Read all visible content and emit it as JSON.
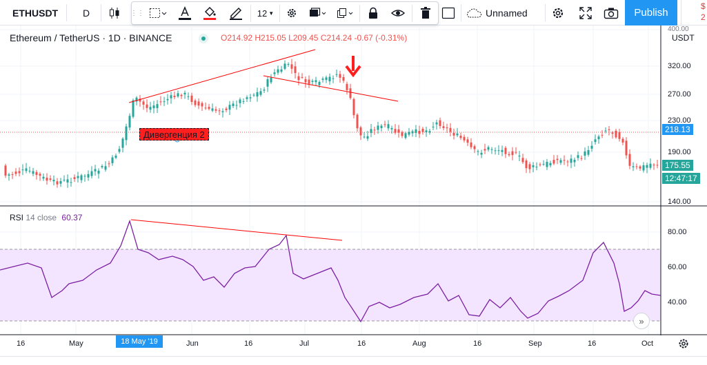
{
  "toolbar": {
    "symbol": "ETHUSDT",
    "interval": "D",
    "font_size": "12",
    "layout_name": "Unnamed",
    "publish_label": "Publish",
    "edge_dollar": "$",
    "edge_digit": "2"
  },
  "chart": {
    "legend": {
      "title": "Ethereum / TetherUS · 1D · BINANCE",
      "ohlc": "O214.92 H215.05 L209.45 C214.24 -0.67 (-0.31%)"
    },
    "rsi_legend": {
      "name": "RSI",
      "params": "14 close",
      "value": "60.37"
    },
    "annotation": "Дивергенция 2",
    "price_axis": {
      "currency": "USDT",
      "ticks": [
        "400.00",
        "320.00",
        "270.00",
        "230.00",
        "190.00",
        "140.00"
      ],
      "marker_price": "218.13",
      "last_price": "175.55",
      "countdown": "12:47:17"
    },
    "rsi_axis": {
      "ticks": [
        "80.00",
        "60.00",
        "40.00"
      ]
    },
    "time_axis": {
      "ticks": [
        "16",
        "May",
        "Jun",
        "16",
        "Jul",
        "16",
        "Aug",
        "16",
        "Sep",
        "16",
        "Oct"
      ],
      "badge": "18 May '19"
    },
    "colors": {
      "up": "#26a69a",
      "down": "#ef5350",
      "trendline": "#ff0000",
      "rsi_line": "#7b1fa2",
      "rsi_band": "#f3e5ff",
      "accent": "#2196f3"
    }
  }
}
